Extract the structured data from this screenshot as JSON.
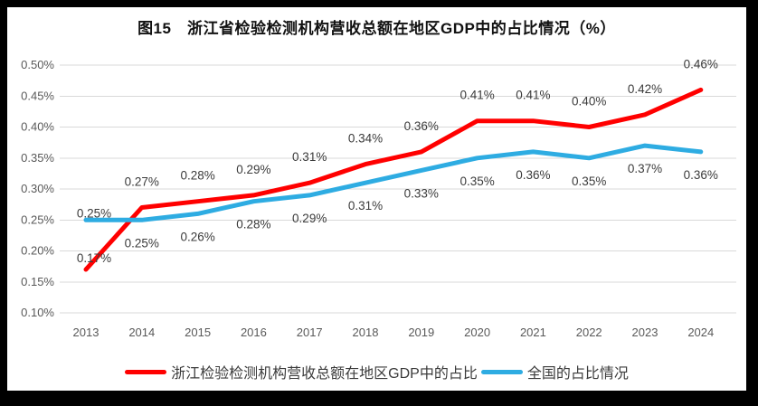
{
  "window": {
    "frame_color": "#000000",
    "canvas_color": "#ffffff"
  },
  "chart_data": {
    "type": "line",
    "title": "图15　浙江省检验检测机构营收总额在地区GDP中的占比情况（%）",
    "categories": [
      "2013",
      "2014",
      "2015",
      "2016",
      "2017",
      "2018",
      "2019",
      "2020",
      "2021",
      "2022",
      "2023",
      "2024"
    ],
    "series": [
      {
        "name": "浙江检验检测机构营收总额在地区GDP中的占比",
        "color": "#FF0000",
        "values": [
          0.17,
          0.27,
          0.28,
          0.29,
          0.31,
          0.34,
          0.36,
          0.41,
          0.41,
          0.4,
          0.42,
          0.46
        ],
        "labels": [
          "0.17%",
          "0.27%",
          "0.28%",
          "0.29%",
          "0.31%",
          "0.34%",
          "0.36%",
          "0.41%",
          "0.41%",
          "0.40%",
          "0.42%",
          "0.46%"
        ]
      },
      {
        "name": "全国的占比情况",
        "color": "#2EACE2",
        "values": [
          0.25,
          0.25,
          0.26,
          0.28,
          0.29,
          0.31,
          0.33,
          0.35,
          0.36,
          0.35,
          0.37,
          0.36
        ],
        "labels": [
          "0.25%",
          "0.25%",
          "0.26%",
          "0.28%",
          "0.29%",
          "0.31%",
          "0.33%",
          "0.35%",
          "0.36%",
          "0.35%",
          "0.37%",
          "0.36%"
        ]
      }
    ],
    "y_axis": {
      "min": 0.1,
      "max": 0.5,
      "step": 0.05,
      "tick_labels": [
        "0.50%",
        "0.45%",
        "0.40%",
        "0.35%",
        "0.30%",
        "0.25%",
        "0.20%",
        "0.15%",
        "0.10%"
      ]
    },
    "x_axis": {
      "tick_labels": [
        "2013",
        "2014",
        "2015",
        "2016",
        "2017",
        "2018",
        "2019",
        "2020",
        "2021",
        "2022",
        "2023",
        "2024"
      ]
    },
    "grid": true,
    "legend_position": "bottom",
    "styles": {
      "grid_color": "#D9D9D9",
      "axis_label_color": "#595959",
      "data_label_color": "#3B3B3B",
      "title_color": "#111111",
      "line_width": 5
    }
  }
}
